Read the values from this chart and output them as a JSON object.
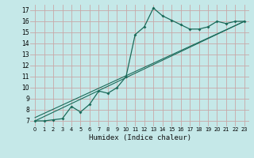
{
  "title": "",
  "xlabel": "Humidex (Indice chaleur)",
  "ylabel": "",
  "background_color": "#c5e8e8",
  "grid_color": "#c8a8a8",
  "line_color": "#1a6b5a",
  "xlim": [
    -0.5,
    23.5
  ],
  "ylim": [
    6.5,
    17.5
  ],
  "yticks": [
    7,
    8,
    9,
    10,
    11,
    12,
    13,
    14,
    15,
    16,
    17
  ],
  "xticks": [
    0,
    1,
    2,
    3,
    4,
    5,
    6,
    7,
    8,
    9,
    10,
    11,
    12,
    13,
    14,
    15,
    16,
    17,
    18,
    19,
    20,
    21,
    22,
    23
  ],
  "xtick_labels": [
    "0",
    "1",
    "2",
    "3",
    "4",
    "5",
    "6",
    "7",
    "8",
    "9",
    "10",
    "11",
    "12",
    "13",
    "14",
    "15",
    "16",
    "17",
    "18",
    "19",
    "20",
    "21",
    "22",
    "23"
  ],
  "series1_x": [
    0,
    1,
    2,
    3,
    4,
    5,
    6,
    7,
    8,
    9,
    10,
    11,
    12,
    13,
    14,
    15,
    16,
    17,
    18,
    19,
    20,
    21,
    22,
    23
  ],
  "series1_y": [
    7.0,
    7.0,
    7.1,
    7.2,
    8.3,
    7.8,
    8.5,
    9.7,
    9.5,
    10.0,
    11.0,
    14.8,
    15.5,
    17.2,
    16.5,
    16.1,
    15.7,
    15.3,
    15.3,
    15.5,
    16.0,
    15.8,
    16.0,
    16.0
  ],
  "series2_x": [
    0,
    23
  ],
  "series2_y": [
    7.0,
    16.0
  ],
  "series3_x": [
    0,
    23
  ],
  "series3_y": [
    7.3,
    16.0
  ]
}
